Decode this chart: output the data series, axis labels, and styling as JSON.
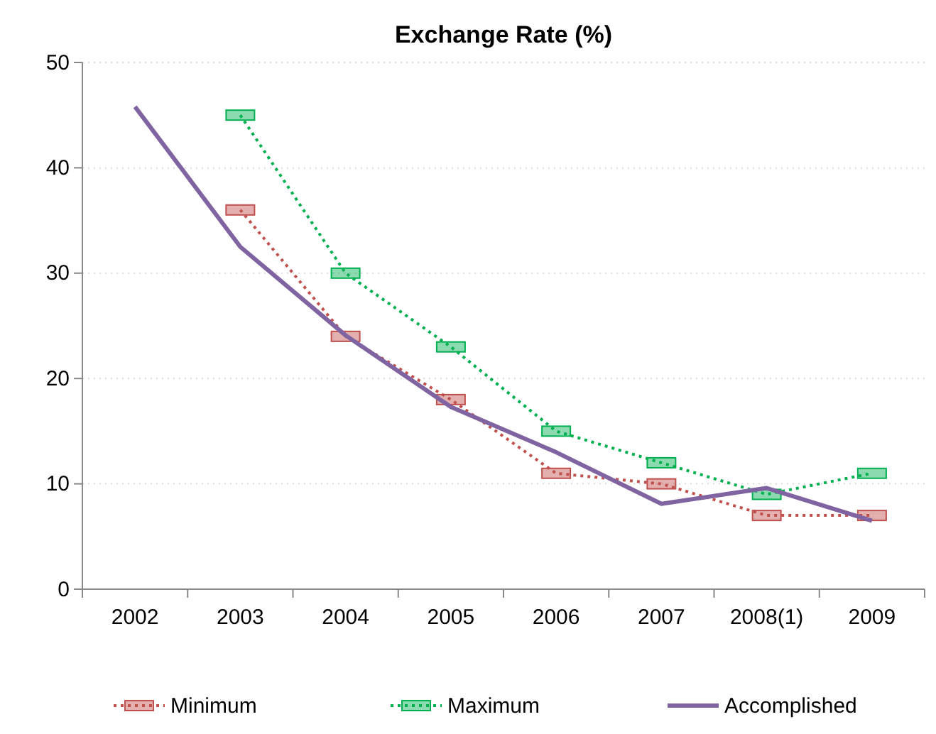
{
  "chart_data": {
    "type": "line",
    "title": "Exchange Rate (%)",
    "categories": [
      "2002",
      "2003",
      "2004",
      "2005",
      "2006",
      "2007",
      "2008(1)",
      "2009"
    ],
    "series": [
      {
        "name": "Minimum",
        "color": "#c0504d",
        "values": [
          null,
          36,
          24,
          18,
          11,
          10,
          7,
          7
        ],
        "line_style": "dotted",
        "marker": "square"
      },
      {
        "name": "Maximum",
        "color": "#00b050",
        "values": [
          null,
          45,
          30,
          23,
          15,
          12,
          9,
          11
        ],
        "line_style": "dotted",
        "marker": "square"
      },
      {
        "name": "Accomplished",
        "color": "#8064a2",
        "values": [
          45.8,
          32.5,
          24.1,
          17.3,
          13,
          8.1,
          9.6,
          6.5
        ],
        "line_style": "solid",
        "marker": "none"
      }
    ],
    "ylim": [
      0,
      50
    ],
    "yticks": [
      0,
      10,
      20,
      30,
      40,
      50
    ],
    "grid": "y",
    "legend": "bottom"
  }
}
